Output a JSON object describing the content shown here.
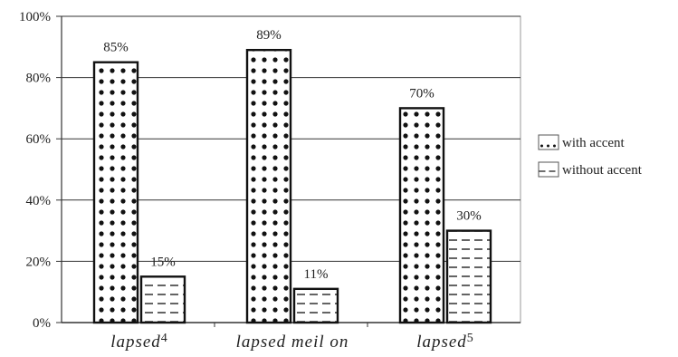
{
  "chart_data": {
    "type": "bar",
    "categories": [
      {
        "label": "lapsed",
        "sup": "4"
      },
      {
        "label": "lapsed meil on",
        "sup": ""
      },
      {
        "label": "lapsed",
        "sup": "5"
      }
    ],
    "series": [
      {
        "name": "with accent",
        "values": [
          85,
          89,
          70
        ],
        "labels": [
          "85%",
          "89%",
          "70%"
        ],
        "pattern": "dots"
      },
      {
        "name": "without accent",
        "values": [
          15,
          11,
          30
        ],
        "labels": [
          "15%",
          "11%",
          "30%"
        ],
        "pattern": "dashes"
      }
    ],
    "ylim": [
      0,
      100
    ],
    "yticks": [
      "0%",
      "20%",
      "40%",
      "60%",
      "80%",
      "100%"
    ],
    "grid": true,
    "legend_position": "right",
    "colors": {
      "bar_stroke": "#111111",
      "fill": "#ffffff",
      "grid": "#333333",
      "frame": "#999999"
    }
  }
}
